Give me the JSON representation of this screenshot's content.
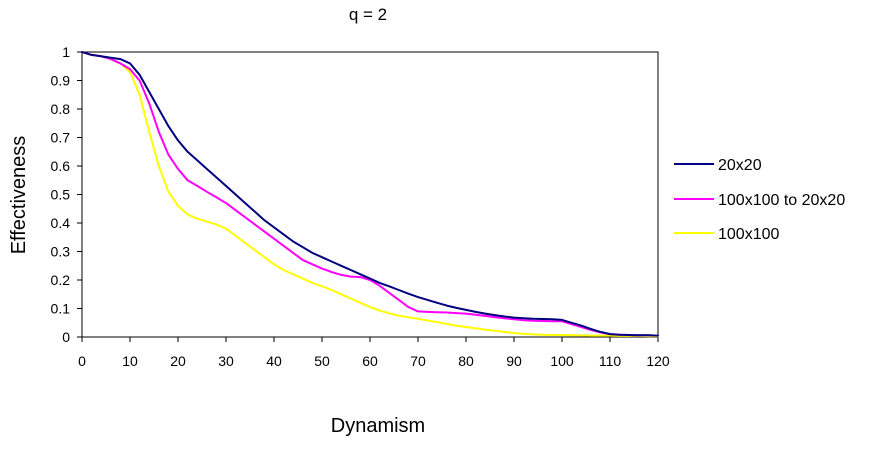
{
  "chart_data": {
    "type": "line",
    "title": "q = 2",
    "xlabel": "Dynamism",
    "ylabel": "Effectiveness",
    "xlim": [
      0,
      120
    ],
    "ylim": [
      0,
      1
    ],
    "xticks": [
      0,
      10,
      20,
      30,
      40,
      50,
      60,
      70,
      80,
      90,
      100,
      110,
      120
    ],
    "yticks": [
      0,
      0.1,
      0.2,
      0.3,
      0.4,
      0.5,
      0.6,
      0.7,
      0.8,
      0.9,
      1
    ],
    "ytick_labels": [
      "0",
      "0.1",
      "0.2",
      "0.3",
      "0.4",
      "0.5",
      "0.6",
      "0.7",
      "0.8",
      "0.9",
      "1"
    ],
    "grid": false,
    "legend_position": "right",
    "series": [
      {
        "name": "20x20",
        "color": "#000080",
        "x": [
          0,
          2,
          4,
          6,
          8,
          10,
          12,
          14,
          16,
          18,
          20,
          22,
          24,
          26,
          28,
          30,
          32,
          34,
          36,
          38,
          40,
          42,
          44,
          46,
          48,
          50,
          52,
          54,
          56,
          58,
          60,
          62,
          64,
          66,
          68,
          70,
          72,
          74,
          76,
          78,
          80,
          82,
          84,
          86,
          88,
          90,
          92,
          94,
          96,
          98,
          100,
          102,
          104,
          106,
          108,
          110,
          112,
          114,
          116,
          118,
          120
        ],
        "values": [
          1.0,
          0.99,
          0.985,
          0.98,
          0.975,
          0.96,
          0.92,
          0.86,
          0.8,
          0.74,
          0.69,
          0.65,
          0.62,
          0.59,
          0.56,
          0.53,
          0.5,
          0.47,
          0.44,
          0.41,
          0.385,
          0.36,
          0.335,
          0.315,
          0.295,
          0.28,
          0.265,
          0.25,
          0.235,
          0.22,
          0.205,
          0.19,
          0.178,
          0.165,
          0.152,
          0.14,
          0.13,
          0.12,
          0.11,
          0.102,
          0.095,
          0.088,
          0.082,
          0.077,
          0.072,
          0.068,
          0.066,
          0.064,
          0.063,
          0.062,
          0.06,
          0.05,
          0.04,
          0.028,
          0.018,
          0.01,
          0.008,
          0.007,
          0.006,
          0.006,
          0.005
        ]
      },
      {
        "name": "100x100 to 20x20",
        "color": "#ff00ff",
        "x": [
          0,
          2,
          4,
          6,
          8,
          10,
          12,
          14,
          16,
          18,
          20,
          22,
          24,
          26,
          28,
          30,
          32,
          34,
          36,
          38,
          40,
          42,
          44,
          46,
          48,
          50,
          52,
          54,
          56,
          58,
          60,
          62,
          64,
          66,
          68,
          70,
          72,
          74,
          76,
          78,
          80,
          82,
          84,
          86,
          88,
          90,
          92,
          94,
          96,
          98,
          100,
          102,
          104,
          106,
          108,
          110,
          112,
          114,
          116,
          118,
          120
        ],
        "values": [
          1.0,
          0.99,
          0.985,
          0.975,
          0.96,
          0.94,
          0.9,
          0.82,
          0.72,
          0.64,
          0.59,
          0.55,
          0.53,
          0.51,
          0.49,
          0.47,
          0.445,
          0.42,
          0.395,
          0.37,
          0.345,
          0.32,
          0.295,
          0.27,
          0.255,
          0.24,
          0.228,
          0.218,
          0.212,
          0.21,
          0.2,
          0.18,
          0.155,
          0.13,
          0.105,
          0.09,
          0.088,
          0.087,
          0.086,
          0.084,
          0.082,
          0.078,
          0.074,
          0.07,
          0.066,
          0.062,
          0.059,
          0.057,
          0.056,
          0.055,
          0.055,
          0.045,
          0.035,
          0.025,
          0.016,
          0.01,
          0.008,
          0.007,
          0.006,
          0.006,
          0.005
        ]
      },
      {
        "name": "100x100",
        "color": "#ffff00",
        "x": [
          0,
          2,
          4,
          6,
          8,
          10,
          12,
          14,
          16,
          18,
          20,
          22,
          24,
          26,
          28,
          30,
          32,
          34,
          36,
          38,
          40,
          42,
          44,
          46,
          48,
          50,
          52,
          54,
          56,
          58,
          60,
          62,
          64,
          66,
          68,
          70,
          72,
          74,
          76,
          78,
          80,
          82,
          84,
          86,
          88,
          90,
          92,
          94,
          96,
          98,
          100,
          102,
          104,
          106,
          108,
          110,
          112,
          114,
          116,
          118,
          120
        ],
        "values": [
          1.0,
          0.99,
          0.985,
          0.975,
          0.96,
          0.93,
          0.85,
          0.72,
          0.6,
          0.51,
          0.46,
          0.43,
          0.415,
          0.405,
          0.395,
          0.38,
          0.355,
          0.33,
          0.305,
          0.28,
          0.255,
          0.235,
          0.22,
          0.205,
          0.19,
          0.178,
          0.165,
          0.15,
          0.135,
          0.12,
          0.105,
          0.093,
          0.083,
          0.075,
          0.069,
          0.064,
          0.058,
          0.052,
          0.046,
          0.04,
          0.035,
          0.03,
          0.026,
          0.022,
          0.018,
          0.014,
          0.011,
          0.009,
          0.008,
          0.007,
          0.007,
          0.006,
          0.006,
          0.005,
          0.005,
          0.005,
          0.004,
          0.004,
          0.004,
          0.003,
          0.003
        ]
      }
    ]
  }
}
